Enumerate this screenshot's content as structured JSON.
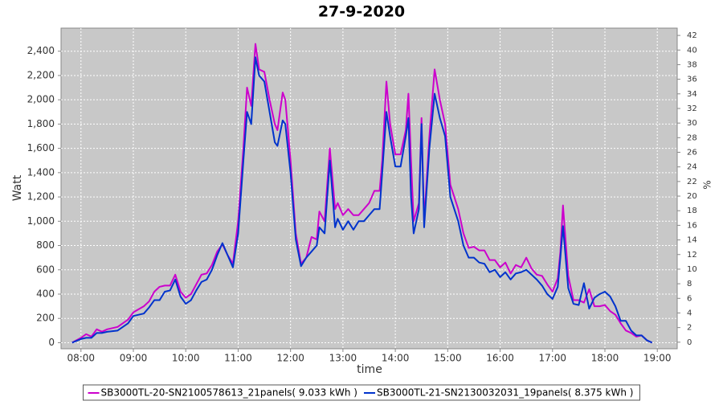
{
  "chart_data": {
    "type": "line",
    "title": "27-9-2020",
    "x_label": "time",
    "y_label": "Watt",
    "y2_label": "%",
    "x": [
      7.83,
      8.0,
      8.1,
      8.2,
      8.3,
      8.4,
      8.5,
      8.7,
      8.9,
      9.0,
      9.2,
      9.3,
      9.4,
      9.5,
      9.6,
      9.7,
      9.8,
      9.9,
      10.0,
      10.1,
      10.2,
      10.3,
      10.4,
      10.5,
      10.6,
      10.7,
      10.8,
      10.9,
      11.0,
      11.1,
      11.17,
      11.25,
      11.33,
      11.4,
      11.5,
      11.6,
      11.7,
      11.75,
      11.85,
      11.9,
      12.0,
      12.1,
      12.2,
      12.3,
      12.4,
      12.5,
      12.55,
      12.65,
      12.75,
      12.85,
      12.9,
      13.0,
      13.1,
      13.2,
      13.3,
      13.4,
      13.5,
      13.6,
      13.7,
      13.75,
      13.83,
      13.9,
      14.0,
      14.1,
      14.2,
      14.25,
      14.3,
      14.35,
      14.45,
      14.5,
      14.55,
      14.65,
      14.75,
      14.85,
      14.95,
      15.05,
      15.2,
      15.3,
      15.4,
      15.5,
      15.6,
      15.7,
      15.8,
      15.9,
      16.0,
      16.1,
      16.2,
      16.3,
      16.4,
      16.5,
      16.6,
      16.7,
      16.8,
      16.9,
      17.0,
      17.1,
      17.15,
      17.2,
      17.3,
      17.4,
      17.5,
      17.6,
      17.7,
      17.8,
      17.9,
      18.0,
      18.1,
      18.2,
      18.3,
      18.4,
      18.5,
      18.6,
      18.7,
      18.8,
      18.9
    ],
    "series": [
      {
        "name": "SB3000TL-20-SN2100578613_21panels( 9.033 kWh )",
        "color": "#cc00cc",
        "values": [
          0,
          40,
          70,
          50,
          110,
          90,
          110,
          130,
          190,
          250,
          300,
          340,
          420,
          460,
          470,
          470,
          560,
          420,
          370,
          400,
          480,
          560,
          570,
          640,
          750,
          810,
          720,
          650,
          1000,
          1600,
          2100,
          1950,
          2460,
          2250,
          2230,
          2000,
          1800,
          1750,
          2060,
          2000,
          1500,
          900,
          650,
          700,
          870,
          850,
          1080,
          1000,
          1600,
          1100,
          1150,
          1050,
          1100,
          1050,
          1050,
          1100,
          1150,
          1250,
          1250,
          1500,
          2150,
          1800,
          1550,
          1550,
          1750,
          2050,
          1500,
          1000,
          1150,
          1850,
          1000,
          1700,
          2250,
          2000,
          1800,
          1300,
          1100,
          900,
          780,
          790,
          760,
          760,
          680,
          680,
          620,
          660,
          570,
          640,
          620,
          700,
          610,
          560,
          550,
          480,
          420,
          530,
          750,
          1130,
          550,
          350,
          350,
          330,
          440,
          300,
          300,
          310,
          260,
          230,
          160,
          100,
          80,
          50,
          60,
          20,
          0
        ]
      },
      {
        "name": "SB3000TL-21-SN2130032031_19panels( 8.375 kWh )",
        "color": "#0033cc",
        "values": [
          0,
          30,
          40,
          40,
          80,
          80,
          90,
          100,
          160,
          220,
          240,
          290,
          350,
          350,
          420,
          430,
          520,
          380,
          320,
          350,
          430,
          500,
          520,
          600,
          720,
          820,
          720,
          620,
          900,
          1500,
          1900,
          1800,
          2350,
          2200,
          2150,
          1900,
          1650,
          1620,
          1830,
          1800,
          1400,
          850,
          630,
          700,
          750,
          800,
          950,
          900,
          1500,
          950,
          1020,
          930,
          1000,
          930,
          1000,
          1000,
          1050,
          1100,
          1100,
          1400,
          1900,
          1700,
          1450,
          1450,
          1700,
          1850,
          1200,
          900,
          1100,
          1800,
          950,
          1600,
          2050,
          1850,
          1700,
          1200,
          1000,
          800,
          700,
          700,
          660,
          650,
          580,
          600,
          540,
          580,
          520,
          570,
          580,
          600,
          560,
          520,
          470,
          400,
          360,
          460,
          700,
          960,
          450,
          320,
          310,
          490,
          280,
          370,
          400,
          420,
          380,
          300,
          180,
          180,
          100,
          60,
          60,
          20,
          0
        ]
      }
    ],
    "xlim": [
      7.62,
      19.38
    ],
    "xticks": [
      {
        "value": 8,
        "label": "08:00"
      },
      {
        "value": 9,
        "label": "09:00"
      },
      {
        "value": 10,
        "label": "10:00"
      },
      {
        "value": 11,
        "label": "11:00"
      },
      {
        "value": 12,
        "label": "12:00"
      },
      {
        "value": 13,
        "label": "13:00"
      },
      {
        "value": 14,
        "label": "14:00"
      },
      {
        "value": 15,
        "label": "15:00"
      },
      {
        "value": 16,
        "label": "16:00"
      },
      {
        "value": 17,
        "label": "17:00"
      },
      {
        "value": 18,
        "label": "18:00"
      },
      {
        "value": 19,
        "label": "19:00"
      }
    ],
    "ylim": [
      -50,
      2590
    ],
    "yticks": [
      0,
      200,
      400,
      600,
      800,
      {
        "value": 1000,
        "label": "1,000"
      },
      {
        "value": 1200,
        "label": "1,200"
      },
      {
        "value": 1400,
        "label": "1,400"
      },
      {
        "value": 1600,
        "label": "1,600"
      },
      {
        "value": 1800,
        "label": "1,800"
      },
      {
        "value": 2000,
        "label": "2,000"
      },
      {
        "value": 2200,
        "label": "2,200"
      },
      {
        "value": 2400,
        "label": "2,400"
      }
    ],
    "y2lim": [
      -0.9,
      43.0
    ],
    "y2ticks": [
      0,
      2,
      4,
      6,
      8,
      10,
      12,
      14,
      16,
      18,
      20,
      22,
      24,
      26,
      28,
      30,
      32,
      34,
      36,
      38,
      40,
      42
    ],
    "grid": true,
    "legend": "bottom",
    "background": "#c8c8c8"
  }
}
